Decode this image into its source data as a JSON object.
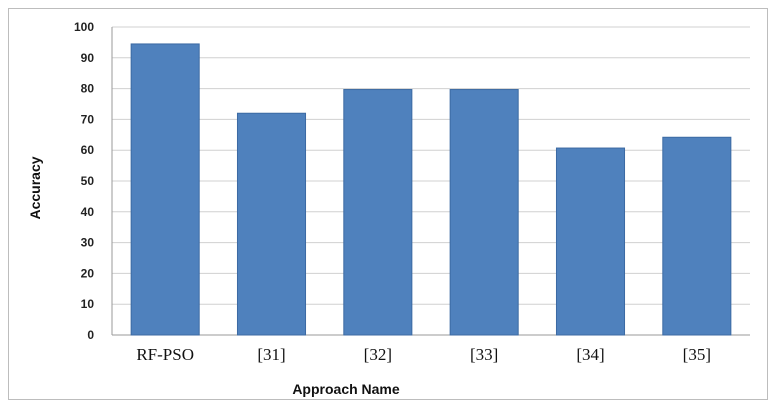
{
  "chart_data": {
    "type": "bar",
    "categories": [
      "RF-PSO",
      "[31]",
      "[32]",
      "[33]",
      "[34]",
      "[35]"
    ],
    "values": [
      94.5,
      72,
      79.7,
      79.7,
      60.7,
      64.2
    ],
    "xlabel": "Approach Name",
    "ylabel": "Accuracy",
    "ylim": [
      0,
      100
    ],
    "yticks": [
      0,
      10,
      20,
      30,
      40,
      50,
      60,
      70,
      80,
      90,
      100
    ],
    "grid": true,
    "legend": "none",
    "colors": {
      "bar": "#4f81bd",
      "bar_edge": "#3c6aa3",
      "grid": "#d0d0d0"
    }
  }
}
